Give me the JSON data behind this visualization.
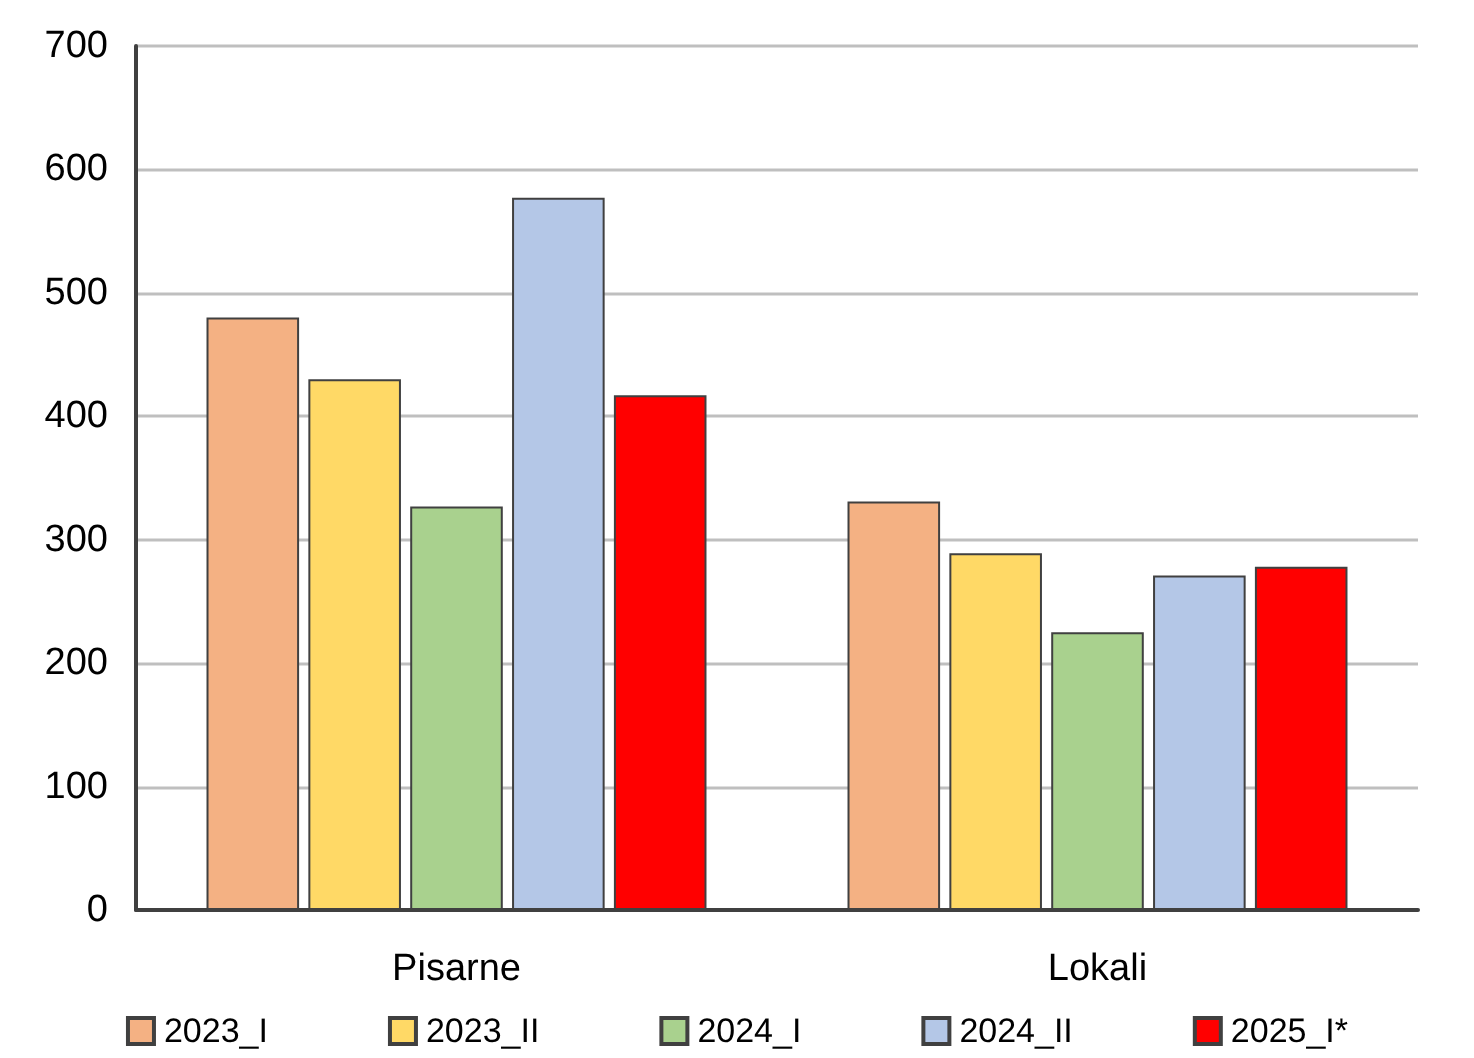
{
  "chart_data": {
    "type": "bar",
    "categories": [
      "Pisarne",
      "Lokali"
    ],
    "series": [
      {
        "name": "2023_I",
        "color": "#f4b183",
        "values": [
          480,
          331
        ]
      },
      {
        "name": "2023_II",
        "color": "#ffd966",
        "values": [
          430,
          289
        ]
      },
      {
        "name": "2024_I",
        "color": "#a9d18e",
        "values": [
          327,
          225
        ]
      },
      {
        "name": "2024_II",
        "color": "#b4c7e7",
        "values": [
          577,
          271
        ]
      },
      {
        "name": "2025_I*",
        "color": "#ff0000",
        "values": [
          417,
          278
        ]
      }
    ],
    "ylim": [
      0,
      700
    ],
    "yticks": [
      0,
      100,
      200,
      300,
      400,
      500,
      600,
      700
    ],
    "grid": "y",
    "legend": "bottom"
  }
}
